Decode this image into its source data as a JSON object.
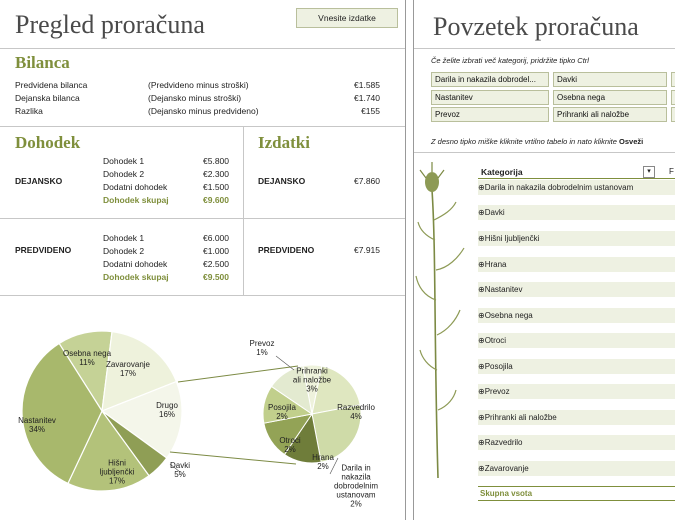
{
  "left_title": "Pregled proračuna",
  "enter_expenses_button": "Vnesite izdatke",
  "right_title": "Povzetek proračuna",
  "bilanca": {
    "title": "Bilanca",
    "rows": [
      {
        "label": "Predvidena bilanca",
        "desc": "(Predvideno minus stroški)",
        "value": "€1.585"
      },
      {
        "label": "Dejanska bilanca",
        "desc": "(Dejansko minus stroški)",
        "value": "€1.740"
      },
      {
        "label": "Razlika",
        "desc": "(Dejansko minus predvideno)",
        "value": "€155"
      }
    ]
  },
  "dohodek": {
    "title": "Dohodek",
    "dejansko": {
      "label": "DEJANSKO",
      "rows": [
        {
          "label": "Dohodek 1",
          "value": "€5.800"
        },
        {
          "label": "Dohodek 2",
          "value": "€2.300"
        },
        {
          "label": "Dodatni dohodek",
          "value": "€1.500"
        }
      ],
      "total_label": "Dohodek skupaj",
      "total_value": "€9.600"
    },
    "predvideno": {
      "label": "PREDVIDENO",
      "rows": [
        {
          "label": "Dohodek 1",
          "value": "€6.000"
        },
        {
          "label": "Dohodek 2",
          "value": "€1.000"
        },
        {
          "label": "Dodatni dohodek",
          "value": "€2.500"
        }
      ],
      "total_label": "Dohodek skupaj",
      "total_value": "€9.500"
    }
  },
  "izdatki": {
    "title": "Izdatki",
    "dejansko_label": "DEJANSKO",
    "dejansko_value": "€7.860",
    "predvideno_label": "PREDVIDENO",
    "predvideno_value": "€7.915"
  },
  "slicer_hint": "Če želite izbrati več kategorij, pridržite tipko Ctrl",
  "slicer_items": [
    "Darila in nakazila dobrodel...",
    "Davki",
    "Nastanitev",
    "Osebna nega",
    "Prevoz",
    "Prihranki ali naložbe"
  ],
  "refresh_hint_prefix": "Z desno tipko miške kliknite vrtilno tabelo in nato kliknite",
  "refresh_hint_bold": "Osveži",
  "pivot": {
    "header": "Kategorija",
    "rows": [
      "Darila in nakazila dobrodelnim ustanovam",
      "Davki",
      "Hišni ljubljenčki",
      "Hrana",
      "Nastanitev",
      "Osebna nega",
      "Otroci",
      "Posojila",
      "Prevoz",
      "Prihranki ali naložbe",
      "Razvedrilo",
      "Zavarovanje"
    ],
    "total": "Skupna vsota",
    "expand_icon": "plus-in-circle"
  },
  "chart_data": {
    "type": "pie",
    "subtype": "pie-of-pie",
    "main": [
      {
        "label": "Osebna nega",
        "value": 11,
        "pct": "11%"
      },
      {
        "label": "Zavarovanje",
        "value": 17,
        "pct": "17%"
      },
      {
        "label": "Drugo",
        "value": 16,
        "pct": "16%"
      },
      {
        "label": "Davki",
        "value": 5,
        "pct": "5%"
      },
      {
        "label": "Hišni ljubljenčki",
        "value": 17,
        "pct": "17%"
      },
      {
        "label": "Nastanitev",
        "value": 34,
        "pct": "34%"
      }
    ],
    "secondary": [
      {
        "label": "Prevoz",
        "value": 1,
        "pct": "1%"
      },
      {
        "label": "Prihranki ali naložbe",
        "value": 3,
        "pct": "3%"
      },
      {
        "label": "Razvedrilo",
        "value": 4,
        "pct": "4%"
      },
      {
        "label": "Darila in nakazila dobrodelnim ustanovam",
        "value": 2,
        "pct": "2%"
      },
      {
        "label": "Hrana",
        "value": 2,
        "pct": "2%"
      },
      {
        "label": "Otroci",
        "value": 2,
        "pct": "2%"
      },
      {
        "label": "Posojila",
        "value": 2,
        "pct": "2%"
      }
    ]
  },
  "colors": {
    "accent": "#7f8f3c",
    "panel": "#eef1e2",
    "border": "#b9bf9c"
  }
}
